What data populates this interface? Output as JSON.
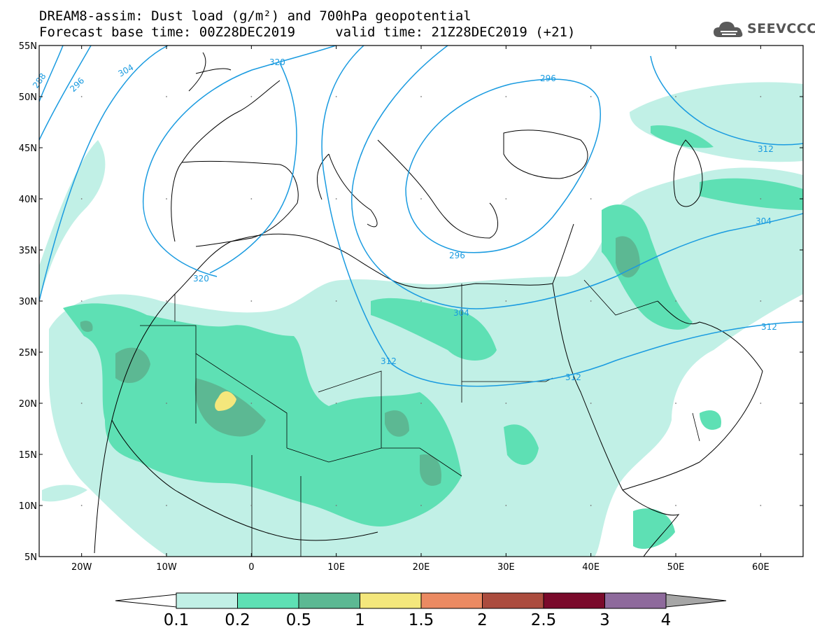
{
  "title": {
    "line1": "DREAM8-assim: Dust load (g/m²) and 700hPa geopotential",
    "line2": "Forecast base time: 00Z28DEC2019     valid time: 21Z28DEC2019 (+21)"
  },
  "logo": {
    "icon": "cloud-icon",
    "text": "SEEVCCC"
  },
  "map": {
    "lon_range": [
      -25,
      65
    ],
    "lat_range": [
      5,
      55
    ],
    "x_ticks": [
      "20W",
      "10W",
      "0",
      "10E",
      "20E",
      "30E",
      "40E",
      "50E",
      "60E"
    ],
    "y_ticks": [
      "55N",
      "50N",
      "45N",
      "40N",
      "35N",
      "30N",
      "25N",
      "20N",
      "15N",
      "10N",
      "5N"
    ],
    "contour_color": "#1a9be0",
    "contour_labels": [
      "288",
      "296",
      "304",
      "312",
      "320",
      "320",
      "296",
      "296",
      "304",
      "304",
      "312",
      "312",
      "312"
    ]
  },
  "colorbar": {
    "ticks": [
      "0.1",
      "0.2",
      "0.5",
      "1",
      "1.5",
      "2",
      "2.5",
      "3",
      "4"
    ],
    "colors": [
      "#c1f0e6",
      "#5ee0b4",
      "#5cb893",
      "#f4e77c",
      "#eb8a62",
      "#ab4c3e",
      "#7a0a2b",
      "#8e6a9c",
      "#a6a6a6"
    ]
  }
}
